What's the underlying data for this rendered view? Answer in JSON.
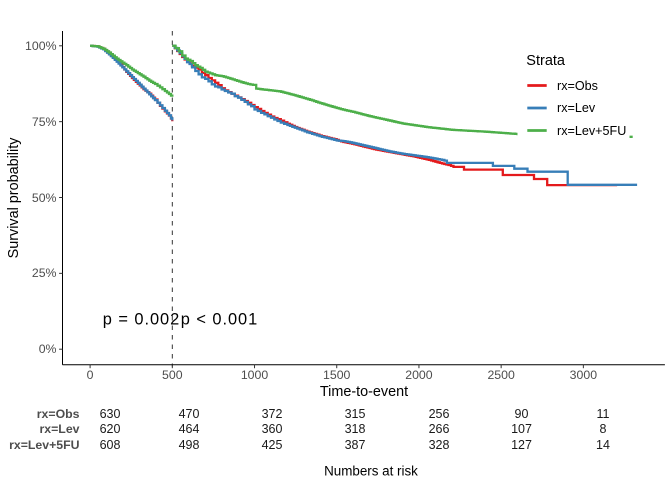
{
  "chart_data": {
    "type": "line",
    "subtype": "kaplan-meier-step",
    "title": "",
    "xlabel": "Time-to-event",
    "ylabel": "Survival probability",
    "x_ticks": [
      0,
      500,
      1000,
      1500,
      2000,
      2500,
      3000
    ],
    "y_ticks": [
      0,
      25,
      50,
      75,
      100
    ],
    "y_tick_labels": [
      "0%",
      "25%",
      "50%",
      "75%",
      "100%"
    ],
    "xlim": [
      -166,
      3496
    ],
    "ylim": [
      -5,
      105
    ],
    "grid": false,
    "vline": {
      "x": 500,
      "style": "dashed",
      "color": "#333333"
    },
    "annotations": [
      {
        "text": "p = 0.002",
        "x": 80,
        "y": 8
      },
      {
        "text": "p < 0.001",
        "x": 553,
        "y": 8
      }
    ],
    "legend": {
      "title": "Strata",
      "position": "right-top",
      "entries": [
        {
          "label": "rx=Obs",
          "color": "#E41A1C"
        },
        {
          "label": "rx=Lev",
          "color": "#377EB8"
        },
        {
          "label": "rx=Lev+5FU",
          "color": "#4DAF4A"
        }
      ]
    },
    "series": [
      {
        "name": "rx=Obs",
        "color": "#E41A1C",
        "segments": [
          [
            [
              0,
              100
            ],
            [
              45,
              99.8
            ],
            [
              80,
              99.0
            ],
            [
              115,
              97.4
            ],
            [
              150,
              95.7
            ],
            [
              185,
              93.8
            ],
            [
              220,
              91.4
            ],
            [
              255,
              89.4
            ],
            [
              290,
              87.5
            ],
            [
              325,
              85.7
            ],
            [
              360,
              84.2
            ],
            [
              395,
              82.3
            ],
            [
              425,
              80.2
            ],
            [
              455,
              78.4
            ],
            [
              480,
              77.0
            ],
            [
              492,
              76.0
            ],
            [
              500,
              75.1
            ]
          ],
          [
            [
              500,
              100
            ],
            [
              515,
              99.2
            ],
            [
              530,
              98.3
            ],
            [
              545,
              97.3
            ],
            [
              560,
              96.3
            ],
            [
              575,
              95.5
            ],
            [
              590,
              94.7
            ],
            [
              605,
              94.2
            ],
            [
              620,
              93.4
            ],
            [
              640,
              92.8
            ],
            [
              660,
              92.2
            ],
            [
              680,
              91.1
            ],
            [
              700,
              90.3
            ],
            [
              720,
              89.4
            ],
            [
              740,
              88.6
            ],
            [
              760,
              87.8
            ],
            [
              780,
              87.0
            ],
            [
              800,
              86.0
            ],
            [
              820,
              85.3
            ],
            [
              840,
              84.7
            ],
            [
              860,
              84.2
            ],
            [
              880,
              83.6
            ],
            [
              900,
              83.0
            ],
            [
              920,
              82.4
            ],
            [
              940,
              81.8
            ],
            [
              960,
              81.2
            ],
            [
              980,
              80.5
            ],
            [
              1000,
              79.8
            ],
            [
              1020,
              79.2
            ],
            [
              1040,
              78.5
            ],
            [
              1060,
              77.9
            ],
            [
              1080,
              77.3
            ],
            [
              1100,
              76.7
            ],
            [
              1120,
              76.2
            ],
            [
              1140,
              75.8
            ],
            [
              1160,
              75.3
            ],
            [
              1180,
              74.8
            ],
            [
              1200,
              74.3
            ],
            [
              1230,
              73.6
            ],
            [
              1260,
              72.9
            ],
            [
              1290,
              72.3
            ],
            [
              1320,
              71.7
            ],
            [
              1350,
              71.2
            ],
            [
              1380,
              70.7
            ],
            [
              1410,
              70.2
            ],
            [
              1440,
              69.8
            ],
            [
              1470,
              69.4
            ],
            [
              1500,
              69.0
            ],
            [
              1540,
              68.3
            ],
            [
              1580,
              67.9
            ],
            [
              1620,
              67.4
            ],
            [
              1660,
              66.8
            ],
            [
              1700,
              66.3
            ],
            [
              1740,
              65.8
            ],
            [
              1780,
              65.4
            ],
            [
              1820,
              65.0
            ],
            [
              1860,
              64.6
            ],
            [
              1900,
              64.2
            ],
            [
              1940,
              63.8
            ],
            [
              1980,
              63.4
            ],
            [
              2020,
              62.9
            ],
            [
              2060,
              62.4
            ],
            [
              2100,
              61.8
            ],
            [
              2140,
              61.2
            ],
            [
              2180,
              60.7
            ],
            [
              2210,
              60.1
            ],
            [
              2274,
              60.1
            ],
            [
              2274,
              59.2
            ],
            [
              2510,
              59.2
            ],
            [
              2510,
              57.4
            ],
            [
              2700,
              57.4
            ],
            [
              2700,
              56.1
            ],
            [
              2780,
              56.1
            ],
            [
              2780,
              54.1
            ],
            [
              3205,
              54.1
            ]
          ]
        ]
      },
      {
        "name": "rx=Lev",
        "color": "#377EB8",
        "segments": [
          [
            [
              0,
              100
            ],
            [
              45,
              99.7
            ],
            [
              80,
              98.8
            ],
            [
              115,
              97.2
            ],
            [
              150,
              95.4
            ],
            [
              185,
              93.5
            ],
            [
              220,
              91.6
            ],
            [
              255,
              89.7
            ],
            [
              290,
              87.8
            ],
            [
              325,
              85.9
            ],
            [
              360,
              84.0
            ],
            [
              395,
              82.1
            ],
            [
              425,
              80.4
            ],
            [
              455,
              78.6
            ],
            [
              480,
              77.1
            ],
            [
              492,
              76.1
            ],
            [
              500,
              75.4
            ]
          ],
          [
            [
              500,
              100
            ],
            [
              515,
              99.3
            ],
            [
              530,
              98.5
            ],
            [
              545,
              97.6
            ],
            [
              560,
              96.6
            ],
            [
              575,
              95.7
            ],
            [
              590,
              94.6
            ],
            [
              605,
              94.0
            ],
            [
              620,
              92.9
            ],
            [
              640,
              91.7
            ],
            [
              660,
              90.6
            ],
            [
              680,
              89.6
            ],
            [
              700,
              89.1
            ],
            [
              720,
              88.3
            ],
            [
              740,
              87.3
            ],
            [
              760,
              86.6
            ],
            [
              780,
              86.3
            ],
            [
              800,
              85.6
            ],
            [
              820,
              85.1
            ],
            [
              840,
              84.6
            ],
            [
              860,
              84.2
            ],
            [
              880,
              83.4
            ],
            [
              900,
              82.9
            ],
            [
              920,
              82.2
            ],
            [
              940,
              81.5
            ],
            [
              960,
              80.7
            ],
            [
              980,
              80.1
            ],
            [
              1000,
              79.0
            ],
            [
              1020,
              78.5
            ],
            [
              1040,
              77.9
            ],
            [
              1060,
              77.4
            ],
            [
              1080,
              76.8
            ],
            [
              1100,
              76.3
            ],
            [
              1120,
              75.7
            ],
            [
              1140,
              75.2
            ],
            [
              1160,
              74.7
            ],
            [
              1180,
              74.3
            ],
            [
              1200,
              73.9
            ],
            [
              1230,
              73.3
            ],
            [
              1260,
              72.7
            ],
            [
              1290,
              72.1
            ],
            [
              1320,
              71.5
            ],
            [
              1350,
              71.0
            ],
            [
              1380,
              70.5
            ],
            [
              1410,
              70.0
            ],
            [
              1440,
              69.6
            ],
            [
              1470,
              69.2
            ],
            [
              1500,
              68.8
            ],
            [
              1540,
              68.6
            ],
            [
              1580,
              68.2
            ],
            [
              1620,
              67.7
            ],
            [
              1660,
              67.2
            ],
            [
              1700,
              66.7
            ],
            [
              1740,
              66.2
            ],
            [
              1780,
              65.7
            ],
            [
              1820,
              65.2
            ],
            [
              1860,
              64.8
            ],
            [
              1900,
              64.4
            ],
            [
              1940,
              64.1
            ],
            [
              1980,
              63.8
            ],
            [
              2020,
              63.5
            ],
            [
              2060,
              63.2
            ],
            [
              2100,
              62.8
            ],
            [
              2140,
              62.4
            ],
            [
              2170,
              61.9
            ],
            [
              2170,
              61.4
            ],
            [
              2450,
              61.4
            ],
            [
              2450,
              60.4
            ],
            [
              2580,
              60.4
            ],
            [
              2580,
              59.5
            ],
            [
              2660,
              59.5
            ],
            [
              2660,
              58.5
            ],
            [
              2905,
              58.5
            ],
            [
              2905,
              54.2
            ],
            [
              3327,
              54.2
            ]
          ]
        ]
      },
      {
        "name": "rx=Lev+5FU",
        "color": "#4DAF4A",
        "segments": [
          [
            [
              0,
              100
            ],
            [
              45,
              99.8
            ],
            [
              80,
              99.0
            ],
            [
              115,
              97.8
            ],
            [
              150,
              96.2
            ],
            [
              185,
              94.9
            ],
            [
              220,
              93.6
            ],
            [
              255,
              92.2
            ],
            [
              290,
              91.0
            ],
            [
              325,
              89.8
            ],
            [
              360,
              88.5
            ],
            [
              395,
              87.4
            ],
            [
              425,
              86.3
            ],
            [
              455,
              85.1
            ],
            [
              480,
              84.1
            ],
            [
              492,
              83.6
            ],
            [
              500,
              83.2
            ]
          ],
          [
            [
              500,
              100
            ],
            [
              520,
              99.2
            ],
            [
              540,
              98.2
            ],
            [
              560,
              96.8
            ],
            [
              580,
              95.8
            ],
            [
              610,
              95.0
            ],
            [
              640,
              93.6
            ],
            [
              670,
              92.7
            ],
            [
              700,
              91.5
            ],
            [
              730,
              90.9
            ],
            [
              760,
              90.3
            ],
            [
              800,
              90.0
            ],
            [
              840,
              89.4
            ],
            [
              880,
              88.7
            ],
            [
              920,
              88.0
            ],
            [
              960,
              87.4
            ],
            [
              990,
              87.1
            ],
            [
              1010,
              85.9
            ],
            [
              1050,
              85.6
            ],
            [
              1100,
              85.3
            ],
            [
              1150,
              85.0
            ],
            [
              1200,
              84.3
            ],
            [
              1250,
              83.6
            ],
            [
              1300,
              82.8
            ],
            [
              1350,
              82.0
            ],
            [
              1400,
              81.1
            ],
            [
              1450,
              80.3
            ],
            [
              1500,
              79.5
            ],
            [
              1550,
              78.8
            ],
            [
              1600,
              78.2
            ],
            [
              1650,
              77.5
            ],
            [
              1700,
              76.8
            ],
            [
              1750,
              76.2
            ],
            [
              1800,
              75.6
            ],
            [
              1850,
              75.0
            ],
            [
              1900,
              74.4
            ],
            [
              1950,
              74.0
            ],
            [
              2000,
              73.6
            ],
            [
              2050,
              73.2
            ],
            [
              2100,
              72.9
            ],
            [
              2150,
              72.6
            ],
            [
              2200,
              72.3
            ],
            [
              2300,
              72.0
            ],
            [
              2400,
              71.7
            ],
            [
              2500,
              71.3
            ],
            [
              2600,
              70.9
            ],
            [
              2700,
              70.5
            ],
            [
              2900,
              70.3
            ],
            [
              3240,
              70.3
            ],
            [
              3240,
              70.0
            ],
            [
              3300,
              70.0
            ]
          ]
        ]
      }
    ]
  },
  "risk_table": {
    "title": "Numbers at risk",
    "time_points": [
      0,
      500,
      1000,
      1500,
      2000,
      2500,
      3000
    ],
    "rows": [
      {
        "label": "rx=Obs",
        "values": [
          "630",
          "470",
          "372",
          "315",
          "256",
          "90",
          "11"
        ]
      },
      {
        "label": "rx=Lev",
        "values": [
          "620",
          "464",
          "360",
          "318",
          "266",
          "107",
          "8"
        ]
      },
      {
        "label": "rx=Lev+5FU",
        "values": [
          "608",
          "498",
          "425",
          "387",
          "328",
          "127",
          "14"
        ]
      }
    ]
  }
}
